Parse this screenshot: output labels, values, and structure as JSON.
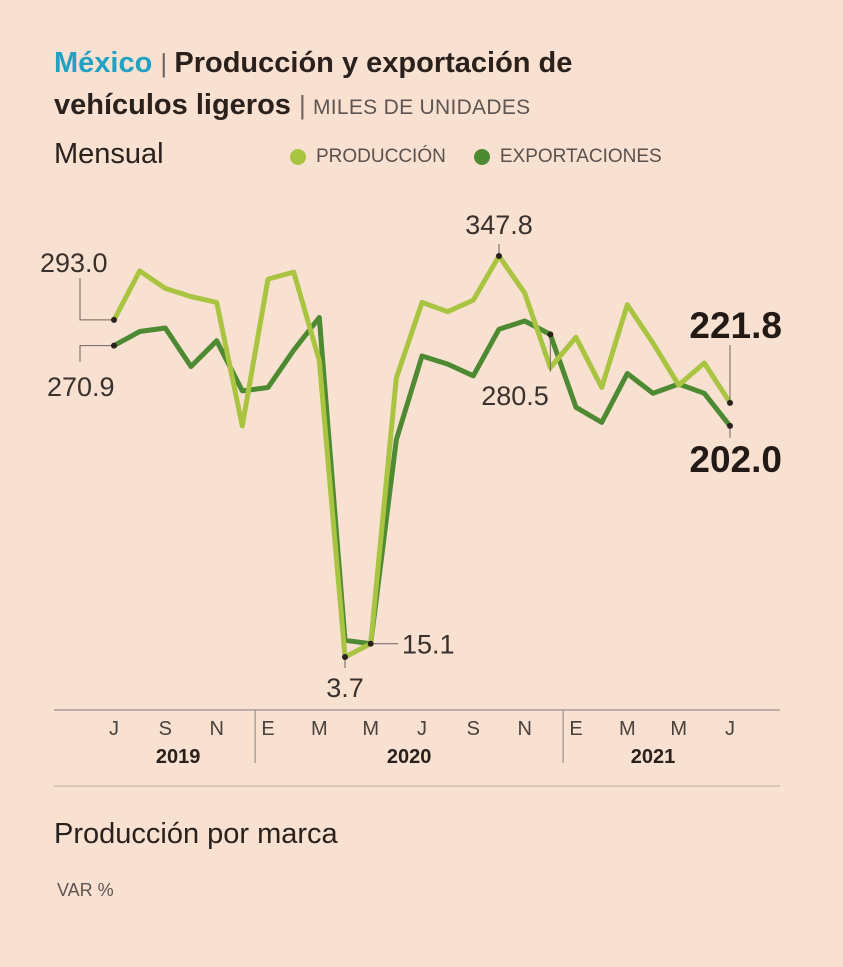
{
  "header": {
    "country": "México",
    "title_part1": "Producción y exportación de",
    "title_part2": "vehículos ligeros",
    "units": "MILES DE UNIDADES",
    "frequency": "Mensual"
  },
  "legend": [
    {
      "label": "PRODUCCIÓN",
      "color": "#a9c441"
    },
    {
      "label": "EXPORTACIONES",
      "color": "#4d8a32"
    }
  ],
  "chart_data": {
    "type": "line",
    "title": "México | Producción y exportación de vehículos ligeros",
    "ylabel": "MILES DE UNIDADES",
    "ylim": [
      0,
      360
    ],
    "x": [
      "Jul 2019",
      "Ago 2019",
      "Sep 2019",
      "Oct 2019",
      "Nov 2019",
      "Dic 2019",
      "Ene 2020",
      "Feb 2020",
      "Mar 2020",
      "Abr 2020",
      "May 2020",
      "Jun 2020",
      "Jul 2020",
      "Ago 2020",
      "Sep 2020",
      "Oct 2020",
      "Nov 2020",
      "Dic 2020",
      "Ene 2021",
      "Feb 2021",
      "Mar 2021",
      "Abr 2021",
      "May 2021",
      "Jun 2021",
      "Jul 2021"
    ],
    "series": [
      {
        "name": "PRODUCCIÓN",
        "color": "#a9c441",
        "values": [
          293.0,
          335.0,
          320.0,
          313.0,
          308.0,
          202.0,
          328.0,
          334.0,
          258.0,
          3.7,
          15.1,
          243.0,
          308.0,
          300.0,
          310.0,
          347.8,
          316.0,
          252.0,
          278.0,
          235.0,
          306.0,
          273.0,
          237.0,
          256.0,
          221.8
        ]
      },
      {
        "name": "EXPORTACIONES",
        "color": "#4d8a32",
        "values": [
          270.9,
          283.0,
          286.0,
          253.0,
          275.0,
          232.0,
          235.0,
          267.0,
          295.0,
          18.0,
          15.1,
          190.0,
          262.0,
          255.0,
          245.0,
          285.0,
          292.0,
          280.5,
          218.0,
          205.0,
          247.0,
          230.0,
          238.0,
          230.0,
          202.0
        ]
      }
    ],
    "annotations": [
      {
        "label": "293.0",
        "series": 0,
        "index": 0
      },
      {
        "label": "270.9",
        "series": 1,
        "index": 0
      },
      {
        "label": "347.8",
        "series": 0,
        "index": 15
      },
      {
        "label": "3.7",
        "series": 0,
        "index": 9
      },
      {
        "label": "15.1",
        "series": 1,
        "index": 10
      },
      {
        "label": "280.5",
        "series": 1,
        "index": 17
      },
      {
        "label": "221.8",
        "series": 0,
        "index": 24
      },
      {
        "label": "202.0",
        "series": 1,
        "index": 24
      }
    ],
    "x_ticks": [
      {
        "label": "J",
        "index": 0
      },
      {
        "label": "S",
        "index": 2
      },
      {
        "label": "N",
        "index": 4
      },
      {
        "label": "E",
        "index": 6
      },
      {
        "label": "M",
        "index": 8
      },
      {
        "label": "M",
        "index": 10
      },
      {
        "label": "J",
        "index": 12
      },
      {
        "label": "S",
        "index": 14
      },
      {
        "label": "N",
        "index": 16
      },
      {
        "label": "E",
        "index": 18
      },
      {
        "label": "M",
        "index": 20
      },
      {
        "label": "M",
        "index": 22
      },
      {
        "label": "J",
        "index": 24
      }
    ],
    "year_labels": [
      {
        "label": "2019",
        "from": 0,
        "to": 5
      },
      {
        "label": "2020",
        "from": 6,
        "to": 17
      },
      {
        "label": "2021",
        "from": 18,
        "to": 24
      }
    ]
  },
  "footer": {
    "title": "Producción por marca",
    "subtitle": "VAR %"
  }
}
